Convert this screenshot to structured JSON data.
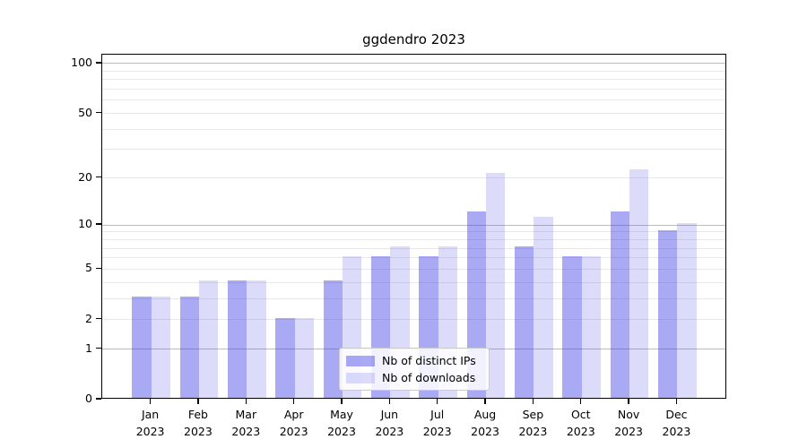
{
  "chart_data": {
    "type": "bar",
    "title": "ggdendro 2023",
    "categories": [
      "Jan",
      "Feb",
      "Mar",
      "Apr",
      "May",
      "Jun",
      "Jul",
      "Aug",
      "Sep",
      "Oct",
      "Nov",
      "Dec"
    ],
    "x_year": "2023",
    "series": [
      {
        "name": "Nb of distinct IPs",
        "color": "rgba(60,60,230,0.44)",
        "values": [
          3,
          3,
          4,
          2,
          4,
          6,
          6,
          12,
          7,
          6,
          12,
          9
        ]
      },
      {
        "name": "Nb of downloads",
        "color": "rgba(60,60,230,0.18)",
        "values": [
          3,
          4,
          4,
          2,
          6,
          7,
          7,
          21,
          11,
          6,
          22,
          10
        ]
      }
    ],
    "yscale": "log1p",
    "ylim": [
      0,
      113.2
    ],
    "yticks_labeled": [
      0,
      1,
      2,
      5,
      10,
      20,
      50,
      100
    ],
    "gridlines_major": [
      1,
      10,
      100
    ],
    "gridlines_minor": [
      2,
      3,
      4,
      5,
      6,
      7,
      8,
      9,
      20,
      30,
      40,
      50,
      60,
      70,
      80,
      90
    ],
    "grid": true,
    "legend_position": "lower center",
    "colors": {
      "spine": "#000000",
      "grid_major": "#bcbcbc",
      "grid_minor": "#e8e8e8",
      "background": "#ffffff"
    }
  }
}
